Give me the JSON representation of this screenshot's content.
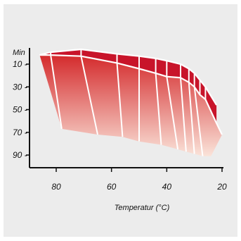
{
  "chart_data": {
    "type": "area",
    "xlabel": "Temperatur (°C)",
    "ylabel": "Min",
    "x_reversed": true,
    "xlim": [
      88,
      20
    ],
    "ylim": [
      0,
      100
    ],
    "x_ticks": [
      80,
      60,
      40,
      20
    ],
    "y_ticks": [
      10,
      30,
      50,
      70,
      90
    ],
    "x_tick_labels": [
      "80",
      "60",
      "40",
      "20"
    ],
    "y_tick_labels": [
      "10 -",
      "30 -",
      "50 -",
      "70 -",
      "90 -"
    ],
    "upper_curve": [
      {
        "x": 86,
        "y": 2
      },
      {
        "x": 82,
        "y": -0.5
      },
      {
        "x": 71,
        "y": -3
      },
      {
        "x": 58,
        "y": 1
      },
      {
        "x": 50,
        "y": 3
      },
      {
        "x": 44,
        "y": 5
      },
      {
        "x": 40,
        "y": 7
      },
      {
        "x": 35,
        "y": 10
      },
      {
        "x": 32,
        "y": 14
      },
      {
        "x": 30,
        "y": 18
      },
      {
        "x": 28,
        "y": 24
      },
      {
        "x": 26,
        "y": 30
      },
      {
        "x": 22,
        "y": 46
      }
    ],
    "front_curve": [
      {
        "x": 86,
        "y": 2
      },
      {
        "x": 82,
        "y": 2
      },
      {
        "x": 71,
        "y": 3
      },
      {
        "x": 58,
        "y": 9
      },
      {
        "x": 50,
        "y": 14
      },
      {
        "x": 44,
        "y": 18
      },
      {
        "x": 40,
        "y": 21
      },
      {
        "x": 35,
        "y": 22
      },
      {
        "x": 32,
        "y": 26
      },
      {
        "x": 30,
        "y": 30
      },
      {
        "x": 28,
        "y": 37
      },
      {
        "x": 26,
        "y": 41
      },
      {
        "x": 22,
        "y": 62
      },
      {
        "x": 20,
        "y": 72
      }
    ],
    "lower_curve": [
      {
        "x": 78,
        "y": 67
      },
      {
        "x": 65,
        "y": 72
      },
      {
        "x": 56,
        "y": 74
      },
      {
        "x": 50,
        "y": 78
      },
      {
        "x": 42,
        "y": 81
      },
      {
        "x": 36,
        "y": 85
      },
      {
        "x": 33,
        "y": 87
      },
      {
        "x": 30,
        "y": 89
      },
      {
        "x": 27,
        "y": 91
      },
      {
        "x": 24,
        "y": 91
      },
      {
        "x": 20,
        "y": 72
      }
    ],
    "colors": {
      "top_fill": "#c8142a",
      "front_top": "#d42a2c",
      "front_bottom": "#fae3d9",
      "divider": "#ffffff",
      "panel": "#ececec",
      "axis": "#111111"
    }
  }
}
